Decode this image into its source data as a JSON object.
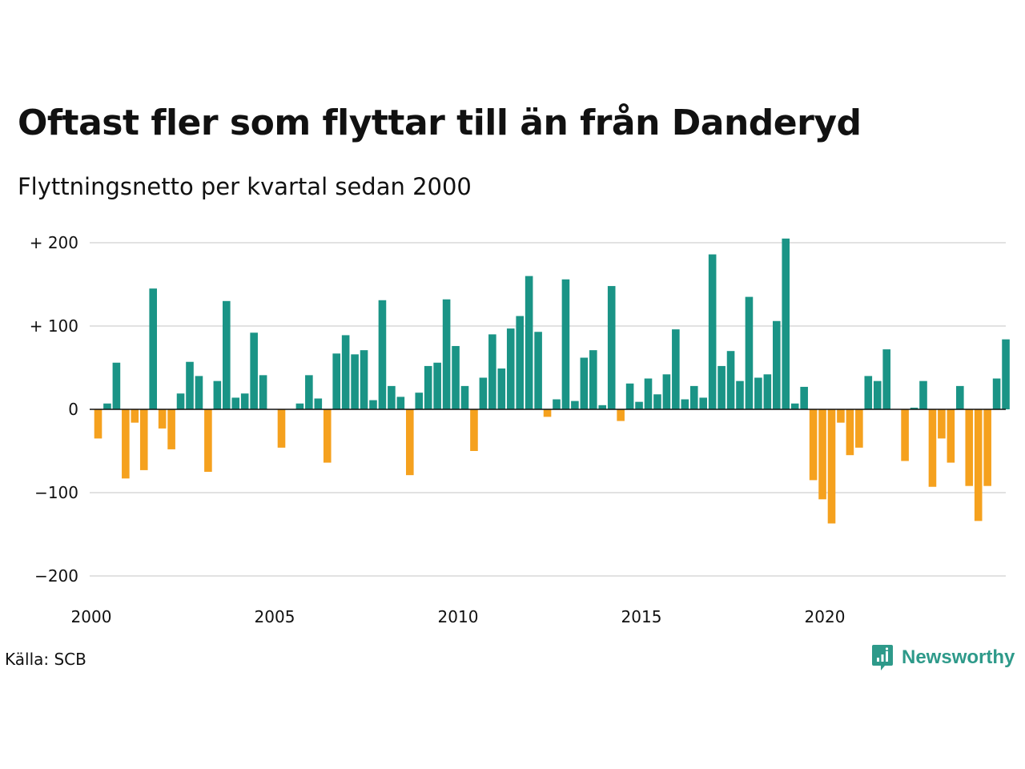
{
  "title": "Oftast fler som flyttar till än från Danderyd",
  "subtitle": "Flyttningsnetto per kvartal sedan 2000",
  "source": "Källa: SCB",
  "brand": {
    "name": "Newsworthy",
    "icon": "newsworthy-logo-icon",
    "color": "#2e9a8a"
  },
  "colors": {
    "positive": "#1a9486",
    "negative": "#f5a11e",
    "grid": "#e2e2e2"
  },
  "chart_data": {
    "type": "bar",
    "title": "Oftast fler som flyttar till än från Danderyd",
    "subtitle": "Flyttningsnetto per kvartal sedan 2000",
    "xlabel": "",
    "ylabel": "",
    "ylim": [
      -200,
      200
    ],
    "yticks": [
      200,
      100,
      0,
      -100,
      -200
    ],
    "ytick_labels": [
      "+ 200",
      "+ 100",
      "0",
      "−100",
      "−200"
    ],
    "xticks": [
      "2000",
      "2005",
      "2010",
      "2015",
      "2020"
    ],
    "grid": true,
    "x_start": "2000 Q1",
    "series": [
      {
        "values": [
          -35,
          7,
          56,
          -83,
          -16,
          -73,
          145,
          -23,
          -48,
          19,
          57,
          40,
          -75,
          34,
          130,
          14,
          19,
          92,
          41,
          0,
          -46,
          0,
          7,
          41,
          13,
          -64,
          67,
          89,
          66,
          71,
          11,
          131,
          28,
          15,
          -79,
          20,
          52,
          56,
          132,
          76,
          28,
          -50,
          38,
          90,
          49,
          97,
          112,
          160,
          93,
          -9,
          12,
          156,
          10,
          62,
          71,
          5,
          148,
          -14,
          31,
          9,
          37,
          18,
          42,
          96,
          12,
          28,
          14,
          186,
          52,
          70,
          34,
          135,
          38,
          42,
          106,
          205,
          7,
          27,
          -85,
          -108,
          -137,
          -16,
          -55,
          -46,
          40,
          34,
          72,
          0,
          -62,
          2,
          34,
          -93,
          -35,
          -64,
          28,
          -92,
          -134,
          -92,
          37,
          84
        ]
      }
    ]
  }
}
